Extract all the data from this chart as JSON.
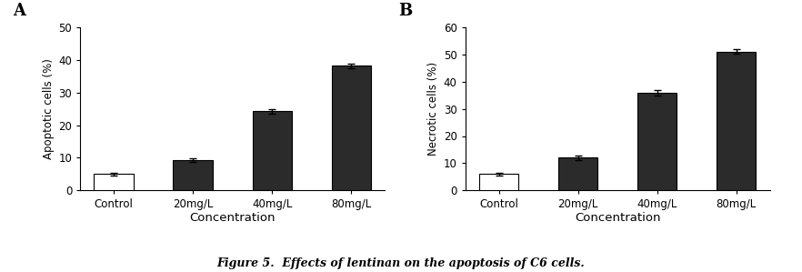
{
  "panel_A": {
    "label": "A",
    "categories": [
      "Control",
      "20mg/L",
      "40mg/L",
      "80mg/L"
    ],
    "values": [
      5.0,
      9.3,
      24.2,
      38.2
    ],
    "errors": [
      0.4,
      0.6,
      0.8,
      0.7
    ],
    "bar_colors": [
      "#ffffff",
      "#2b2b2b",
      "#2b2b2b",
      "#2b2b2b"
    ],
    "bar_edge_colors": [
      "#000000",
      "#000000",
      "#000000",
      "#000000"
    ],
    "ylabel": "Apoptotic cells (%)",
    "xlabel": "Concentration",
    "ylim": [
      0,
      50
    ],
    "yticks": [
      0,
      10,
      20,
      30,
      40,
      50
    ]
  },
  "panel_B": {
    "label": "B",
    "categories": [
      "Control",
      "20mg/L",
      "40mg/L",
      "80mg/L"
    ],
    "values": [
      6.0,
      12.0,
      36.0,
      51.0
    ],
    "errors": [
      0.5,
      0.7,
      1.0,
      0.8
    ],
    "bar_colors": [
      "#ffffff",
      "#2b2b2b",
      "#2b2b2b",
      "#2b2b2b"
    ],
    "bar_edge_colors": [
      "#000000",
      "#000000",
      "#000000",
      "#000000"
    ],
    "ylabel": "Necrotic cells (%)",
    "xlabel": "Concentration",
    "ylim": [
      0,
      60
    ],
    "yticks": [
      0,
      10,
      20,
      30,
      40,
      50,
      60
    ]
  },
  "caption": "Figure 5.  Effects of lentinan on the apoptosis of C6 cells.",
  "background_color": "#ffffff",
  "bar_width": 0.5
}
